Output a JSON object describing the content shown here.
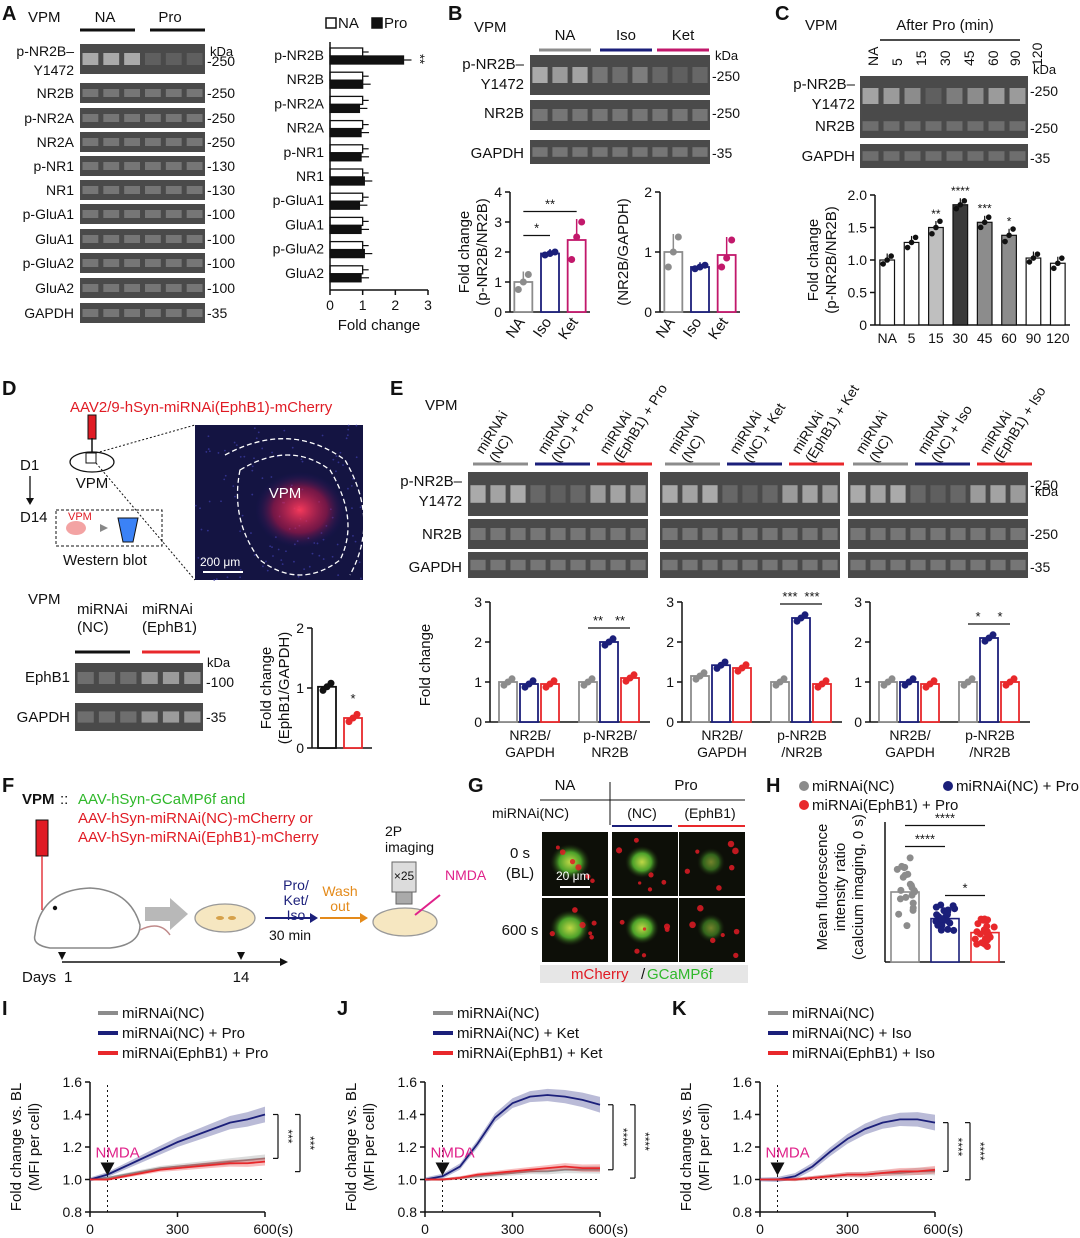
{
  "panel_letters": [
    "A",
    "B",
    "C",
    "D",
    "E",
    "F",
    "G",
    "H",
    "I",
    "J",
    "K"
  ],
  "colors": {
    "na_gray": "#8c8c8c",
    "pro_navy": "#1b1f7a",
    "ket_magenta": "#c2186b",
    "ephb1_red": "#e8282b",
    "blot_bg": "#4a4a4a",
    "nmda_pink": "#e0218a",
    "gcamp_green": "#2fb82a",
    "mcherry_red": "#e01b24"
  },
  "panel_A": {
    "region": "VPM",
    "groups": [
      "NA",
      "Pro"
    ],
    "blot_labels": [
      "p-NR2B–\nY1472",
      "NR2B",
      "p-NR2A",
      "NR2A",
      "p-NR1",
      "NR1",
      "p-GluA1",
      "GluA1",
      "p-GluA2",
      "GluA2",
      "GAPDH"
    ],
    "kda_header": "kDa",
    "kda": [
      "250",
      "250",
      "250",
      "250",
      "130",
      "130",
      "100",
      "100",
      "100",
      "100",
      "35"
    ],
    "legend": [
      "NA",
      "Pro"
    ],
    "sig": "**",
    "chart_data": {
      "type": "bar",
      "orientation": "horizontal",
      "categories": [
        "p-NR2B",
        "NR2B",
        "p-NR2A",
        "NR2A",
        "p-NR1",
        "NR1",
        "p-GluA1",
        "GluA1",
        "p-GluA2",
        "GluA2"
      ],
      "series": [
        {
          "name": "NA",
          "values": [
            1,
            1,
            1,
            1,
            1,
            1,
            1,
            1,
            1,
            1
          ]
        },
        {
          "name": "Pro",
          "values": [
            2.25,
            1.0,
            0.9,
            0.95,
            0.95,
            1.05,
            0.9,
            0.95,
            1.05,
            0.95
          ]
        }
      ],
      "xlabel": "Fold change",
      "xticks": [
        "0",
        "1",
        "2",
        "3"
      ],
      "xlim": [
        0,
        3
      ]
    }
  },
  "panel_B": {
    "region": "VPM",
    "groups": [
      "NA",
      "Iso",
      "Ket"
    ],
    "blot_labels": [
      "p-NR2B–\nY1472",
      "NR2B",
      "GAPDH"
    ],
    "kda_header": "kDa",
    "kda": [
      "250",
      "250",
      "35"
    ],
    "chart_data": [
      {
        "type": "bar",
        "categories": [
          "NA",
          "Iso",
          "Ket"
        ],
        "values": [
          1.0,
          1.95,
          2.4
        ],
        "points": [
          [
            0.75,
            1.0,
            1.25
          ],
          [
            1.9,
            1.95,
            2.0
          ],
          [
            1.75,
            2.5,
            3.0
          ]
        ],
        "ylabel": "Fold change\n(p-NR2B/NR2B)",
        "ylim": [
          0,
          4
        ],
        "yticks": [
          "0",
          "1",
          "2",
          "3",
          "4"
        ],
        "sig": [
          {
            "pair": [
              "NA",
              "Iso"
            ],
            "label": "*"
          },
          {
            "pair": [
              "NA",
              "Ket"
            ],
            "label": "**"
          }
        ]
      },
      {
        "type": "bar",
        "categories": [
          "NA",
          "Iso",
          "Ket"
        ],
        "values": [
          1.0,
          0.75,
          0.95
        ],
        "points": [
          [
            0.75,
            1.0,
            1.25
          ],
          [
            0.72,
            0.75,
            0.78
          ],
          [
            0.75,
            0.9,
            1.2
          ]
        ],
        "ylabel": "(NR2B/GAPDH)",
        "ylim": [
          0,
          2
        ],
        "yticks": [
          "0",
          "1",
          "2"
        ]
      }
    ]
  },
  "panel_C": {
    "region": "VPM",
    "header": "After Pro (min)",
    "lanes": [
      "NA",
      "5",
      "15",
      "30",
      "45",
      "60",
      "90",
      "120"
    ],
    "blot_labels": [
      "p-NR2B–\nY1472",
      "NR2B",
      "GAPDH"
    ],
    "kda_header": "kDa",
    "kda": [
      "250",
      "250",
      "35"
    ],
    "chart_data": {
      "type": "bar",
      "categories": [
        "NA",
        "5",
        "15",
        "30",
        "45",
        "60",
        "90",
        "120"
      ],
      "values": [
        1.0,
        1.27,
        1.5,
        1.85,
        1.58,
        1.38,
        1.03,
        0.95
      ],
      "ylabel": "Fold change\n(p-NR2B/NR2B)",
      "ylim": [
        0,
        2.0
      ],
      "yticks": [
        "0",
        "0.5",
        "1.0",
        "1.5",
        "2.0"
      ],
      "sig": [
        "",
        "",
        "**",
        "****",
        "***",
        "*",
        "",
        ""
      ],
      "bar_fills": [
        "#ffffff",
        "#ffffff",
        "#bfbfbf",
        "#3a3a3a",
        "#8c8c8c",
        "#8c8c8c",
        "#ffffff",
        "#ffffff"
      ]
    }
  },
  "panel_D": {
    "virus": "AAV2/9-hSyn-miRNAi(EphB1)-mCherry",
    "d1": "D1",
    "d14": "D14",
    "target": "VPM",
    "inset_vpm": "VPM",
    "western": "Western blot",
    "image_label": "VPM",
    "scale": "200 μm",
    "region": "VPM",
    "groups": [
      "miRNAi\n(NC)",
      "miRNAi\n(EphB1)"
    ],
    "blot_labels": [
      "EphB1",
      "GAPDH"
    ],
    "kda_header": "kDa",
    "kda": [
      "100",
      "35"
    ],
    "chart_data": {
      "type": "bar",
      "categories": [
        "miRNAi(NC)",
        "miRNAi(EphB1)"
      ],
      "values": [
        1.02,
        0.5
      ],
      "ylabel": "Fold change\n(EphB1/GAPDH)",
      "ylim": [
        0,
        2
      ],
      "yticks": [
        "0",
        "1",
        "2"
      ],
      "sig": [
        "",
        "*"
      ]
    }
  },
  "panel_E": {
    "region": "VPM",
    "lane_groups": [
      [
        "miRNAi\n(NC)",
        "miRNAi\n(NC) + Pro",
        "miRNAi\n(EphB1) + Pro"
      ],
      [
        "miRNAi\n(NC)",
        "miRNAi\n(NC) + Ket",
        "miRNAi\n(EphB1) + Ket"
      ],
      [
        "miRNAi\n(NC)",
        "miRNAi\n(NC) + Iso",
        "miRNAi\n(EphB1) + Iso"
      ]
    ],
    "blot_labels": [
      "p-NR2B–\nY1472",
      "NR2B",
      "GAPDH"
    ],
    "kda_header": "kDa",
    "kda": [
      "250",
      "250",
      "35"
    ],
    "ylabel": "Fold change",
    "xgroups": [
      [
        "NR2B/\nGAPDH",
        "p-NR2B/\nNR2B"
      ],
      [
        "NR2B/\nGAPDH",
        "p-NR2B\n/NR2B"
      ],
      [
        "NR2B/\nGAPDH",
        "p-NR2B\n/NR2B"
      ]
    ],
    "chart_data": [
      {
        "type": "bar",
        "groups": [
          "NR2B/GAPDH",
          "p-NR2B/NR2B"
        ],
        "series": [
          {
            "name": "miRNAi(NC)",
            "values": [
              1.0,
              1.0
            ]
          },
          {
            "name": "miRNAi(NC) + Pro",
            "values": [
              0.95,
              2.0
            ]
          },
          {
            "name": "miRNAi(EphB1) + Pro",
            "values": [
              0.95,
              1.1
            ]
          }
        ],
        "ylim": [
          0,
          3
        ],
        "yticks": [
          "0",
          "1",
          "2",
          "3"
        ],
        "sig": [
          "**",
          "**"
        ]
      },
      {
        "type": "bar",
        "groups": [
          "NR2B/GAPDH",
          "p-NR2B/NR2B"
        ],
        "series": [
          {
            "name": "miRNAi(NC)",
            "values": [
              1.15,
              1.0
            ]
          },
          {
            "name": "miRNAi(NC) + Ket",
            "values": [
              1.42,
              2.6
            ]
          },
          {
            "name": "miRNAi(EphB1) + Ket",
            "values": [
              1.35,
              0.95
            ]
          }
        ],
        "ylim": [
          0,
          3
        ],
        "yticks": [
          "0",
          "1",
          "2",
          "3"
        ],
        "sig": [
          "***",
          "***"
        ]
      },
      {
        "type": "bar",
        "groups": [
          "NR2B/GAPDH",
          "p-NR2B/NR2B"
        ],
        "series": [
          {
            "name": "miRNAi(NC)",
            "values": [
              1.0,
              1.0
            ]
          },
          {
            "name": "miRNAi(NC) + Iso",
            "values": [
              1.0,
              2.1
            ]
          },
          {
            "name": "miRNAi(EphB1) + Iso",
            "values": [
              0.95,
              1.0
            ]
          }
        ],
        "ylim": [
          0,
          3
        ],
        "yticks": [
          "0",
          "1",
          "2",
          "3"
        ],
        "sig": [
          "*",
          "*"
        ]
      }
    ]
  },
  "panel_F": {
    "prefix": "VPM",
    "sep": "::",
    "line1": "AAV-hSyn-GCaMP6f and",
    "line2": "AAV-hSyn-miRNAi(NC)-mCherry or",
    "line3": "AAV-hSyn-miRNAi(EphB1)-mCherry",
    "imaging": "2P\nimaging",
    "obj": "×25",
    "nmda": "NMDA",
    "drugs": "Pro/\nKet/\nIso",
    "wash": "Wash\nout",
    "time": "30 min",
    "days": "Days",
    "d1": "1",
    "d14": "14"
  },
  "panel_G": {
    "col_na": "NA",
    "col_pro": "Pro",
    "row_label": "miRNAi(NC)",
    "sub_nc": "(NC)",
    "sub_ephb1": "(EphB1)",
    "t0": "0 s\n(BL)",
    "t600": "600 s",
    "scale": "20 μm",
    "caption_red": "mCherry",
    "caption_sep": "/",
    "caption_green": "GCaMP6f"
  },
  "panel_H": {
    "legend": [
      "miRNAi(NC)",
      "miRNAi(NC) + Pro",
      "miRNAi(EphB1) + Pro"
    ],
    "chart_data": {
      "type": "bar",
      "categories": [
        "miRNAi(NC)",
        "miRNAi(NC) + Pro",
        "miRNAi(EphB1) + Pro"
      ],
      "values": [
        1.0,
        0.62,
        0.42
      ],
      "ylabel": "Mean fluorescence\nintensity ratio\n(calcium imaging, 0 s)",
      "ylim": [
        0,
        2.0
      ],
      "sig": [
        {
          "pair": [
            0,
            1
          ],
          "label": "****"
        },
        {
          "pair": [
            0,
            2
          ],
          "label": "****"
        },
        {
          "pair": [
            1,
            2
          ],
          "label": "*"
        }
      ]
    }
  },
  "panel_traces": [
    {
      "letter": "I",
      "legend": [
        "miRNAi(NC)",
        "miRNAi(NC) + Pro",
        "miRNAi(EphB1) + Pro"
      ],
      "nmda": "NMDA",
      "sig": [
        "***",
        "***"
      ],
      "ylabel": "Fold change vs. BL\n(MFI per cell)",
      "xunit": "(s)",
      "xticks": [
        "0",
        "300",
        "600"
      ],
      "yticks": [
        "0.8",
        "1.0",
        "1.2",
        "1.4",
        "1.6"
      ],
      "chart_data": {
        "type": "line",
        "x": [
          0,
          60,
          120,
          180,
          240,
          300,
          360,
          420,
          480,
          540,
          600
        ],
        "series": [
          {
            "name": "miRNAi(NC)",
            "values": [
              1.0,
              1.01,
              1.03,
              1.05,
              1.07,
              1.08,
              1.09,
              1.1,
              1.11,
              1.12,
              1.13
            ]
          },
          {
            "name": "miRNAi(NC) + Pro",
            "values": [
              1.0,
              1.03,
              1.08,
              1.13,
              1.18,
              1.23,
              1.27,
              1.31,
              1.35,
              1.37,
              1.4
            ]
          },
          {
            "name": "miRNAi(EphB1) + Pro",
            "values": [
              1.0,
              1.0,
              1.02,
              1.04,
              1.06,
              1.07,
              1.08,
              1.09,
              1.1,
              1.1,
              1.11
            ]
          }
        ],
        "xlim": [
          0,
          600
        ],
        "ylim": [
          0.8,
          1.6
        ]
      }
    },
    {
      "letter": "J",
      "legend": [
        "miRNAi(NC)",
        "miRNAi(NC) + Ket",
        "miRNAi(EphB1) + Ket"
      ],
      "nmda": "NMDA",
      "sig": [
        "****",
        "****"
      ],
      "ylabel": "Fold change vs. BL\n(MFI per cell)",
      "xunit": "(s)",
      "xticks": [
        "0",
        "300",
        "600"
      ],
      "yticks": [
        "0.8",
        "1.0",
        "1.2",
        "1.4",
        "1.6"
      ],
      "chart_data": {
        "type": "line",
        "x": [
          0,
          60,
          120,
          180,
          240,
          300,
          360,
          420,
          480,
          540,
          600
        ],
        "series": [
          {
            "name": "miRNAi(NC)",
            "values": [
              1.0,
              1.0,
              1.01,
              1.02,
              1.03,
              1.04,
              1.05,
              1.05,
              1.06,
              1.06,
              1.06
            ]
          },
          {
            "name": "miRNAi(NC) + Ket",
            "values": [
              1.0,
              1.02,
              1.08,
              1.22,
              1.38,
              1.47,
              1.51,
              1.52,
              1.51,
              1.49,
              1.46
            ]
          },
          {
            "name": "miRNAi(EphB1) + Ket",
            "values": [
              1.0,
              1.0,
              1.01,
              1.03,
              1.04,
              1.05,
              1.06,
              1.07,
              1.08,
              1.07,
              1.07
            ]
          }
        ],
        "xlim": [
          0,
          600
        ],
        "ylim": [
          0.8,
          1.6
        ]
      }
    },
    {
      "letter": "K",
      "legend": [
        "miRNAi(NC)",
        "miRNAi(NC) + Iso",
        "miRNAi(EphB1) + Iso"
      ],
      "nmda": "NMDA",
      "sig": [
        "****",
        "****"
      ],
      "ylabel": "Fold change vs. BL\n(MFI per cell)",
      "xunit": "(s)",
      "xticks": [
        "0",
        "300",
        "600"
      ],
      "yticks": [
        "0.8",
        "1.0",
        "1.2",
        "1.4",
        "1.6"
      ],
      "chart_data": {
        "type": "line",
        "x": [
          0,
          60,
          120,
          180,
          240,
          300,
          360,
          420,
          480,
          540,
          600
        ],
        "series": [
          {
            "name": "miRNAi(NC)",
            "values": [
              1.0,
              1.0,
              1.0,
              1.01,
              1.02,
              1.03,
              1.03,
              1.04,
              1.04,
              1.05,
              1.05
            ]
          },
          {
            "name": "miRNAi(NC) + Iso",
            "values": [
              1.0,
              1.0,
              1.02,
              1.08,
              1.17,
              1.25,
              1.31,
              1.35,
              1.37,
              1.37,
              1.35
            ]
          },
          {
            "name": "miRNAi(EphB1) + Iso",
            "values": [
              1.0,
              1.0,
              1.0,
              1.01,
              1.02,
              1.03,
              1.03,
              1.04,
              1.05,
              1.05,
              1.06
            ]
          }
        ],
        "xlim": [
          0,
          600
        ],
        "ylim": [
          0.8,
          1.6
        ]
      }
    }
  ]
}
